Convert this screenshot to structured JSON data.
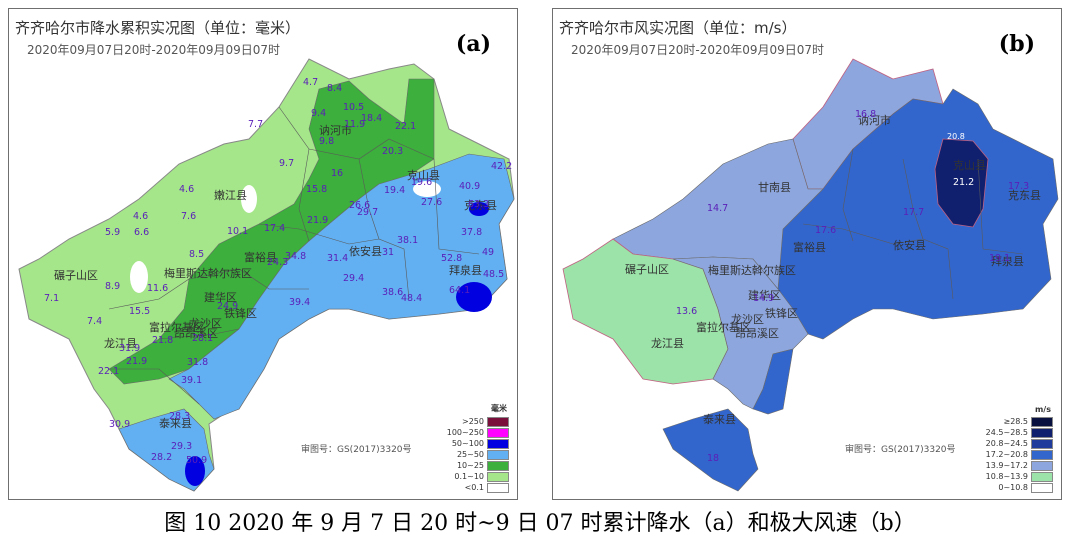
{
  "caption": "图 10 2020 年 9 月 7 日 20 时~9 日 07 时累计降水（a）和极大风速（b）",
  "panel_a": {
    "title": "齐齐哈尔市降水累积实况图（单位：毫米）",
    "time": "2020年09月07日20时-2020年09月09日07时",
    "tag": "(a)",
    "review": "审图号：GS(2017)3320号",
    "legend_title": "毫米",
    "legend": [
      {
        "label": ">250",
        "color": "#7b0f3c"
      },
      {
        "label": "100~250",
        "color": "#ff00ff"
      },
      {
        "label": "50~100",
        "color": "#0000e0"
      },
      {
        "label": "25~50",
        "color": "#62b0f2"
      },
      {
        "label": "10~25",
        "color": "#3caf3c"
      },
      {
        "label": "0.1~10",
        "color": "#a5e68a"
      },
      {
        "label": "<0.1",
        "color": "#ffffff"
      }
    ],
    "counties": [
      "嫩江县",
      "讷河市",
      "克山县",
      "克东县",
      "拜泉县",
      "依安县",
      "富裕县",
      "梅里斯达斡尔族区",
      "碾子山区",
      "龙沙区",
      "建华区",
      "铁锋区",
      "昂昂溪区",
      "富拉尔基区",
      "龙江县",
      "泰来县"
    ],
    "values": [
      "4.7",
      "8.4",
      "9.4",
      "10.5",
      "18.4",
      "11.9",
      "7.7",
      "22.1",
      "9.8",
      "20.3",
      "9.7",
      "16",
      "19.4",
      "19.6",
      "42.2",
      "4.6",
      "15.8",
      "26.6",
      "29.7",
      "27.6",
      "40.9",
      "63.3",
      "4.6",
      "7.6",
      "21.9",
      "10.1",
      "37.8",
      "5.9",
      "6.6",
      "17.4",
      "38.1",
      "49",
      "8.5",
      "34.8",
      "31.4",
      "31",
      "52.8",
      "48.5",
      "8.9",
      "11.6",
      "24.3",
      "29.4",
      "38.6",
      "48.4",
      "64.1",
      "7.1",
      "15.5",
      "24.9",
      "39.4",
      "7.4",
      "21.8",
      "28.1",
      "31.9",
      "21.9",
      "31.8",
      "22.1",
      "39.1",
      "30.9",
      "28.3",
      "29.3",
      "28.2",
      "50.9"
    ]
  },
  "panel_b": {
    "title": "齐齐哈尔市风实况图（单位：m/s）",
    "time": "2020年09月07日20时-2020年09月09日07时",
    "tag": "(b)",
    "review": "审图号：GS(2017)3320号",
    "legend_title": "m/s",
    "legend": [
      {
        "label": "≥28.5",
        "color": "#08103f"
      },
      {
        "label": "24.5~28.5",
        "color": "#10206e"
      },
      {
        "label": "20.8~24.5",
        "color": "#1f3c9c"
      },
      {
        "label": "17.2~20.8",
        "color": "#3366cc"
      },
      {
        "label": "13.9~17.2",
        "color": "#8da6dd"
      },
      {
        "label": "10.8~13.9",
        "color": "#9be3a8"
      },
      {
        "label": "0~10.8",
        "color": "#ffffff"
      }
    ],
    "counties": [
      "讷河市",
      "克山县",
      "甘南县",
      "克东县",
      "富裕县",
      "依安县",
      "拜泉县",
      "碾子山区",
      "梅里斯达斡尔族区",
      "建华区",
      "龙沙区",
      "铁锋区",
      "富拉尔基区",
      "昂昂溪区",
      "龙江县",
      "泰来县"
    ],
    "values": [
      "16.8",
      "20.8",
      "21.2",
      "17.3",
      "14.7",
      "17.6",
      "17.7",
      "19.1",
      "13.6",
      "14.9",
      "18"
    ]
  }
}
